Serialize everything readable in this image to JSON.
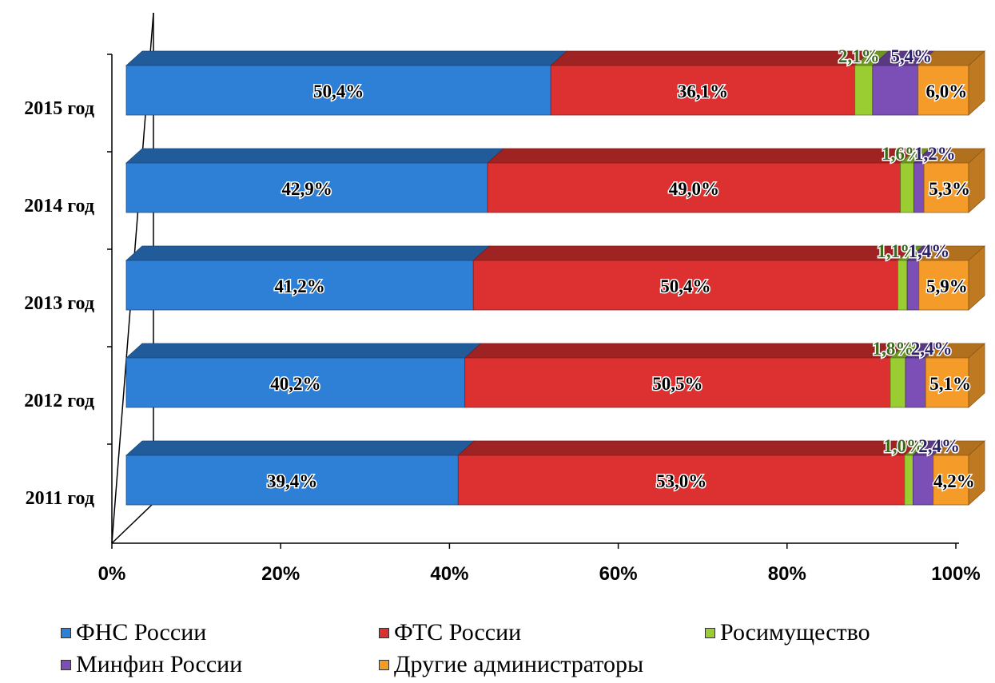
{
  "chart_data": {
    "type": "bar",
    "orientation": "horizontal",
    "stacked": "percent",
    "style": "3d",
    "categories": [
      "2015 год",
      "2014 год",
      "2013 год",
      "2012 год",
      "2011 год"
    ],
    "series": [
      {
        "name": "ФНС России",
        "color": "#2e7fd6",
        "values": [
          50.4,
          42.9,
          41.2,
          40.2,
          39.4
        ],
        "labels": [
          "50,4%",
          "42,9%",
          "41,2%",
          "40,2%",
          "39,4%"
        ]
      },
      {
        "name": "ФТС России",
        "color": "#dd3030",
        "values": [
          36.1,
          49.0,
          50.4,
          50.5,
          53.0
        ],
        "labels": [
          "36,1%",
          "49,0%",
          "50,4%",
          "50,5%",
          "53,0%"
        ]
      },
      {
        "name": "Росимущество",
        "color": "#9acd32",
        "values": [
          2.1,
          1.6,
          1.1,
          1.8,
          1.0
        ],
        "labels": [
          "2,1%",
          "1,6%",
          "1,1%",
          "1,8%",
          "1,0%"
        ]
      },
      {
        "name": "Минфин России",
        "color": "#7b4fb5",
        "values": [
          5.4,
          1.2,
          1.4,
          2.4,
          2.4
        ],
        "labels": [
          "5,4%",
          "1,2%",
          "1,4%",
          "2,4%",
          "2,4%"
        ]
      },
      {
        "name": "Другие администраторы",
        "color": "#f59b2a",
        "values": [
          6.0,
          5.3,
          5.9,
          5.1,
          4.2
        ],
        "labels": [
          "6,0%",
          "5,3%",
          "5,9%",
          "5,1%",
          "4,2%"
        ]
      }
    ],
    "x_ticks": [
      "0%",
      "20%",
      "40%",
      "60%",
      "80%",
      "100%"
    ],
    "xlim": [
      0,
      100
    ],
    "grid": false,
    "legend_position": "bottom",
    "title": "",
    "xlabel": "",
    "ylabel": ""
  }
}
